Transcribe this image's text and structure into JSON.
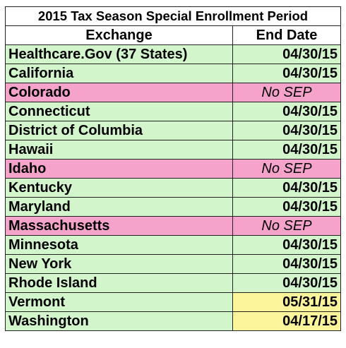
{
  "title": "2015 Tax Season Special Enrollment Period",
  "columns": [
    "Exchange",
    "End Date"
  ],
  "rows": [
    {
      "exchange": "Healthcare.Gov (37 States)",
      "end_date": "04/30/15",
      "exchange_color": "#d3f5cb",
      "end_date_color": "#d3f5cb",
      "italic": false
    },
    {
      "exchange": "California",
      "end_date": "04/30/15",
      "exchange_color": "#d3f5cb",
      "end_date_color": "#d3f5cb",
      "italic": false
    },
    {
      "exchange": "Colorado",
      "end_date": "No SEP",
      "exchange_color": "#f6a3cc",
      "end_date_color": "#f6a3cc",
      "italic": true
    },
    {
      "exchange": "Connecticut",
      "end_date": "04/30/15",
      "exchange_color": "#d3f5cb",
      "end_date_color": "#d3f5cb",
      "italic": false
    },
    {
      "exchange": "District of Columbia",
      "end_date": "04/30/15",
      "exchange_color": "#d3f5cb",
      "end_date_color": "#d3f5cb",
      "italic": false
    },
    {
      "exchange": "Hawaii",
      "end_date": "04/30/15",
      "exchange_color": "#d3f5cb",
      "end_date_color": "#d3f5cb",
      "italic": false
    },
    {
      "exchange": "Idaho",
      "end_date": "No SEP",
      "exchange_color": "#f6a3cc",
      "end_date_color": "#f6a3cc",
      "italic": true
    },
    {
      "exchange": "Kentucky",
      "end_date": "04/30/15",
      "exchange_color": "#d3f5cb",
      "end_date_color": "#d3f5cb",
      "italic": false
    },
    {
      "exchange": "Maryland",
      "end_date": "04/30/15",
      "exchange_color": "#d3f5cb",
      "end_date_color": "#d3f5cb",
      "italic": false
    },
    {
      "exchange": "Massachusetts",
      "end_date": "No SEP",
      "exchange_color": "#f6a3cc",
      "end_date_color": "#f6a3cc",
      "italic": true
    },
    {
      "exchange": "Minnesota",
      "end_date": "04/30/15",
      "exchange_color": "#d3f5cb",
      "end_date_color": "#d3f5cb",
      "italic": false
    },
    {
      "exchange": "New York",
      "end_date": "04/30/15",
      "exchange_color": "#d3f5cb",
      "end_date_color": "#d3f5cb",
      "italic": false
    },
    {
      "exchange": "Rhode Island",
      "end_date": "04/30/15",
      "exchange_color": "#d3f5cb",
      "end_date_color": "#d3f5cb",
      "italic": false
    },
    {
      "exchange": "Vermont",
      "end_date": "05/31/15",
      "exchange_color": "#d3f5cb",
      "end_date_color": "#fdf59c",
      "italic": false
    },
    {
      "exchange": "Washington",
      "end_date": "04/17/15",
      "exchange_color": "#d3f5cb",
      "end_date_color": "#fdf59c",
      "italic": false
    }
  ]
}
